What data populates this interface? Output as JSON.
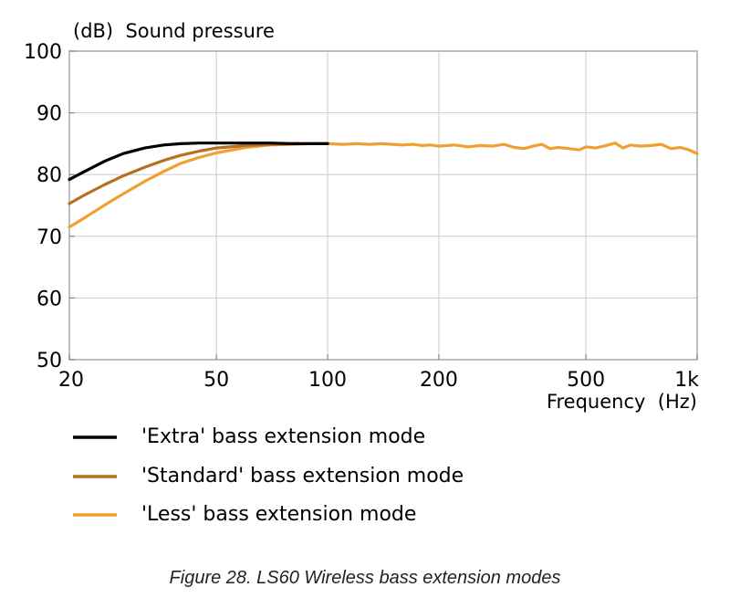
{
  "chart_data": {
    "type": "line",
    "ylabel": "(dB)  Sound pressure",
    "xlabel": "Frequency  (Hz)",
    "x_scale": "log",
    "xlim": [
      20,
      1000
    ],
    "ylim": [
      50,
      100
    ],
    "x_ticks": [
      {
        "value": 20,
        "label": "20"
      },
      {
        "value": 50,
        "label": "50"
      },
      {
        "value": 100,
        "label": "100"
      },
      {
        "value": 200,
        "label": "200"
      },
      {
        "value": 500,
        "label": "500"
      },
      {
        "value": 1000,
        "label": "1k"
      }
    ],
    "y_ticks": [
      {
        "value": 50,
        "label": "50"
      },
      {
        "value": 60,
        "label": "60"
      },
      {
        "value": 70,
        "label": "70"
      },
      {
        "value": 80,
        "label": "80"
      },
      {
        "value": 90,
        "label": "90"
      },
      {
        "value": 100,
        "label": "100"
      }
    ],
    "legend_position": "bottom-left",
    "series": [
      {
        "name": "'Extra' bass extension mode",
        "color": "#000000",
        "x": [
          20,
          22,
          25,
          28,
          32,
          36,
          40,
          45,
          50,
          60,
          70,
          80,
          90,
          100
        ],
        "y": [
          79.2,
          80.5,
          82.2,
          83.4,
          84.3,
          84.8,
          85.0,
          85.1,
          85.1,
          85.1,
          85.1,
          85.0,
          85.0,
          85.0
        ]
      },
      {
        "name": "'Standard' bass extension mode",
        "color": "#b5711f",
        "x": [
          20,
          22,
          25,
          28,
          32,
          36,
          40,
          45,
          50,
          60,
          70,
          80,
          90,
          100
        ],
        "y": [
          75.3,
          76.7,
          78.4,
          79.8,
          81.2,
          82.3,
          83.1,
          83.8,
          84.3,
          84.7,
          84.9,
          85.0,
          85.0,
          85.0
        ]
      },
      {
        "name": "'Less' bass extension mode",
        "color": "#f0a030",
        "x": [
          20,
          22,
          25,
          28,
          32,
          36,
          40,
          45,
          50,
          60,
          70,
          80,
          90,
          100,
          110,
          120,
          130,
          140,
          150,
          160,
          170,
          180,
          190,
          200,
          220,
          240,
          260,
          280,
          300,
          320,
          340,
          360,
          380,
          400,
          420,
          450,
          480,
          500,
          530,
          560,
          600,
          630,
          660,
          700,
          750,
          800,
          850,
          900,
          950,
          1000
        ],
        "y": [
          71.5,
          73.0,
          75.1,
          76.9,
          78.9,
          80.5,
          81.8,
          82.8,
          83.5,
          84.4,
          84.8,
          84.9,
          85.0,
          85.0,
          84.9,
          85.0,
          84.9,
          85.0,
          84.9,
          84.8,
          84.9,
          84.7,
          84.8,
          84.6,
          84.8,
          84.5,
          84.7,
          84.6,
          84.9,
          84.4,
          84.2,
          84.6,
          84.9,
          84.2,
          84.4,
          84.2,
          84.0,
          84.5,
          84.3,
          84.6,
          85.1,
          84.3,
          84.8,
          84.6,
          84.7,
          84.9,
          84.2,
          84.4,
          84.0,
          83.4
        ]
      }
    ]
  },
  "caption": "Figure 28. LS60 Wireless bass extension modes"
}
